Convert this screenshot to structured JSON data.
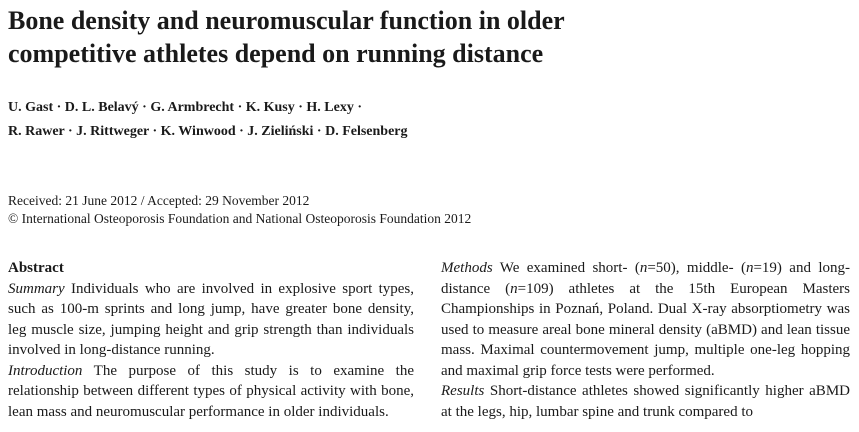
{
  "title": {
    "line1": "Bone density and neuromuscular function in older",
    "line2": "competitive athletes depend on running distance"
  },
  "authors": {
    "line1": "U. Gast · D. L. Belavý · G. Armbrecht · K. Kusy · H. Lexy ·",
    "line2": "R. Rawer · J. Rittweger · K. Winwood · J. Zieliński · D. Felsenberg"
  },
  "meta": {
    "received": "Received: 21 June 2012 / Accepted: 29 November 2012",
    "copyright": "© International Osteoporosis Foundation and National Osteoporosis Foundation 2012"
  },
  "abstract": {
    "heading": "Abstract",
    "summary_label": "Summary",
    "summary_text": " Individuals who are involved in explosive sport types, such as 100-m sprints and long jump, have greater bone density, leg muscle size, jumping height and grip strength than individuals involved in long-distance running.",
    "intro_label": "Introduction",
    "intro_text": " The purpose of this study is to examine the relationship between different types of physical activity with bone, lean mass and neuromuscular performance in older individuals.",
    "methods_label": "Methods",
    "methods_t1": " We examined short- (",
    "methods_n1": "n",
    "methods_t2": "=50), middle- (",
    "methods_n2": "n",
    "methods_t3": "=19) and long-distance (",
    "methods_n3": "n",
    "methods_t4": "=109) athletes at the 15th European Masters Championships in Poznań, Poland. Dual X-ray absorptiometry was used to measure areal bone mineral density (aBMD) and lean tissue mass. Maximal countermovement jump, multiple one-leg hopping and maximal grip force tests were performed.",
    "results_label": "Results",
    "results_text": " Short-distance athletes showed significantly higher aBMD at the legs, hip, lumbar spine and trunk compared to"
  }
}
